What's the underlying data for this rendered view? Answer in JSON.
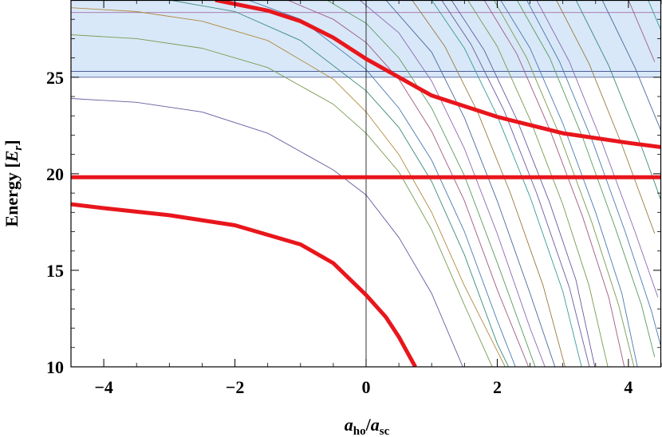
{
  "chart_data": {
    "type": "line",
    "title": "",
    "xlabel": {
      "a": "a",
      "a_sub": "ho",
      "slash": "/",
      "b": "a",
      "b_sub": "sc"
    },
    "ylabel": {
      "text": "Energy [",
      "var": "E",
      "var_sub": "r",
      "close": "]"
    },
    "xlim": [
      -4.5,
      4.5
    ],
    "ylim": [
      10,
      29
    ],
    "x_ticks": [
      -4,
      -2,
      0,
      2,
      4
    ],
    "x_tick_labels": [
      "−4",
      "−2",
      "0",
      "2",
      "4"
    ],
    "y_ticks": [
      10,
      15,
      20,
      25
    ],
    "y_tick_labels": [
      "10",
      "15",
      "20",
      "25"
    ],
    "band": {
      "y": [
        25.0,
        29.0
      ],
      "color": "#d8e8f8",
      "edge_color": "#9ab8d0"
    },
    "threshold_lines": [
      {
        "y": 25.0,
        "color": "#3a4a8a"
      },
      {
        "y": 25.3,
        "color": "#3a4a8a"
      },
      {
        "y": 28.35,
        "color": "#9a5a9a"
      }
    ],
    "zero_line_x": 0,
    "highlight_color": "#e8161c",
    "highlight_series": [
      {
        "points": [
          [
            -4.5,
            18.42
          ],
          [
            -4.0,
            18.22
          ],
          [
            -3.0,
            17.85
          ],
          [
            -2.0,
            17.33
          ],
          [
            -1.0,
            16.34
          ],
          [
            -0.5,
            15.37
          ],
          [
            0.0,
            13.72
          ],
          [
            0.3,
            12.58
          ],
          [
            0.5,
            11.55
          ],
          [
            0.75,
            10.0
          ]
        ]
      },
      {
        "points": [
          [
            -4.5,
            19.82
          ],
          [
            4.5,
            19.82
          ]
        ]
      },
      {
        "points": [
          [
            -2.3,
            29.0
          ],
          [
            -1.5,
            28.45
          ],
          [
            -1.0,
            27.9
          ],
          [
            -0.5,
            27.05
          ],
          [
            0.0,
            25.95
          ],
          [
            0.5,
            25.0
          ],
          [
            1.0,
            24.05
          ],
          [
            2.0,
            22.95
          ],
          [
            3.0,
            22.1
          ],
          [
            4.0,
            21.6
          ],
          [
            4.5,
            21.38
          ]
        ]
      }
    ],
    "thin_series": [
      {
        "color": "#6a5aa0",
        "points": [
          [
            -4.5,
            23.9
          ],
          [
            -3.5,
            23.7
          ],
          [
            -2.5,
            23.2
          ],
          [
            -1.5,
            22.1
          ],
          [
            -0.5,
            20.2
          ],
          [
            0.0,
            18.9
          ],
          [
            0.5,
            16.7
          ],
          [
            1.0,
            13.8
          ],
          [
            1.5,
            9.8
          ]
        ]
      },
      {
        "color": "#7a9a50",
        "points": [
          [
            -4.5,
            27.2
          ],
          [
            -3.5,
            27.0
          ],
          [
            -2.5,
            26.5
          ],
          [
            -1.5,
            25.5
          ],
          [
            -0.5,
            23.6
          ],
          [
            0.0,
            22.1
          ],
          [
            0.5,
            20.1
          ],
          [
            1.0,
            17.1
          ],
          [
            1.5,
            13.2
          ],
          [
            1.95,
            9.8
          ]
        ]
      },
      {
        "color": "#b08a40",
        "points": [
          [
            -4.5,
            28.6
          ],
          [
            -3.5,
            28.4
          ],
          [
            -2.5,
            27.9
          ],
          [
            -1.5,
            26.9
          ],
          [
            -0.5,
            24.9
          ],
          [
            0.0,
            23.2
          ],
          [
            0.5,
            21.0
          ],
          [
            1.0,
            18.0
          ],
          [
            1.5,
            14.2
          ],
          [
            2.15,
            9.8
          ]
        ]
      },
      {
        "color": "#3a8a7a",
        "points": [
          [
            -3.0,
            29.0
          ],
          [
            -2.0,
            28.4
          ],
          [
            -1.0,
            26.9
          ],
          [
            0.0,
            24.3
          ],
          [
            0.5,
            22.4
          ],
          [
            1.0,
            19.6
          ],
          [
            1.5,
            15.8
          ],
          [
            2.0,
            11.2
          ],
          [
            2.2,
            9.8
          ]
        ]
      },
      {
        "color": "#4a7ab0",
        "points": [
          [
            -1.8,
            29.0
          ],
          [
            -1.0,
            28.0
          ],
          [
            0.0,
            25.4
          ],
          [
            0.5,
            23.4
          ],
          [
            1.0,
            20.7
          ],
          [
            1.5,
            17.0
          ],
          [
            2.0,
            12.4
          ],
          [
            2.3,
            9.8
          ]
        ]
      },
      {
        "color": "#a05a80",
        "points": [
          [
            -1.2,
            29.0
          ],
          [
            -0.5,
            28.0
          ],
          [
            0.0,
            26.8
          ],
          [
            0.5,
            24.9
          ],
          [
            1.0,
            22.2
          ],
          [
            1.5,
            18.6
          ],
          [
            2.0,
            14.0
          ],
          [
            2.5,
            9.8
          ]
        ]
      },
      {
        "color": "#5a9a60",
        "points": [
          [
            -0.6,
            29.0
          ],
          [
            0.0,
            27.8
          ],
          [
            0.5,
            26.0
          ],
          [
            1.0,
            23.4
          ],
          [
            1.5,
            19.9
          ],
          [
            2.0,
            15.4
          ],
          [
            2.6,
            9.8
          ]
        ]
      },
      {
        "color": "#8a6ab0",
        "points": [
          [
            -0.1,
            29.0
          ],
          [
            0.5,
            27.3
          ],
          [
            1.0,
            24.8
          ],
          [
            1.5,
            21.3
          ],
          [
            2.0,
            16.9
          ],
          [
            2.5,
            12.0
          ],
          [
            2.75,
            9.8
          ]
        ]
      },
      {
        "color": "#4a6a9a",
        "points": [
          [
            0.3,
            29.0
          ],
          [
            1.0,
            26.3
          ],
          [
            1.5,
            22.9
          ],
          [
            2.0,
            18.6
          ],
          [
            2.5,
            13.8
          ],
          [
            2.9,
            9.8
          ]
        ]
      },
      {
        "color": "#9a7a40",
        "points": [
          [
            0.7,
            29.0
          ],
          [
            1.2,
            26.6
          ],
          [
            1.7,
            23.2
          ],
          [
            2.2,
            19.0
          ],
          [
            2.7,
            14.2
          ],
          [
            3.05,
            9.8
          ]
        ]
      },
      {
        "color": "#3a9a9a",
        "points": [
          [
            1.0,
            29.0
          ],
          [
            1.5,
            26.5
          ],
          [
            2.0,
            23.0
          ],
          [
            2.5,
            18.8
          ],
          [
            3.0,
            13.9
          ],
          [
            3.3,
            9.8
          ]
        ]
      },
      {
        "color": "#6a5aa0",
        "points": [
          [
            1.3,
            29.0
          ],
          [
            1.8,
            26.4
          ],
          [
            2.3,
            22.8
          ],
          [
            2.8,
            18.5
          ],
          [
            3.2,
            14.5
          ],
          [
            3.5,
            9.8
          ]
        ]
      },
      {
        "color": "#7a9a50",
        "points": [
          [
            1.55,
            29.0
          ],
          [
            2.0,
            26.6
          ],
          [
            2.5,
            22.8
          ],
          [
            3.0,
            18.4
          ],
          [
            3.4,
            14.2
          ],
          [
            3.7,
            9.8
          ]
        ]
      },
      {
        "color": "#a05a80",
        "points": [
          [
            1.8,
            29.0
          ],
          [
            2.3,
            26.2
          ],
          [
            2.8,
            22.3
          ],
          [
            3.3,
            17.8
          ],
          [
            3.7,
            13.6
          ],
          [
            3.95,
            9.8
          ]
        ]
      },
      {
        "color": "#4a7ab0",
        "points": [
          [
            2.05,
            29.0
          ],
          [
            2.5,
            26.5
          ],
          [
            3.0,
            22.6
          ],
          [
            3.5,
            18.0
          ],
          [
            3.9,
            13.8
          ],
          [
            4.15,
            9.8
          ]
        ]
      },
      {
        "color": "#5a9a60",
        "points": [
          [
            2.3,
            29.0
          ],
          [
            2.8,
            26.0
          ],
          [
            3.3,
            21.9
          ],
          [
            3.8,
            17.2
          ],
          [
            4.2,
            13.2
          ],
          [
            4.4,
            10.5
          ]
        ]
      },
      {
        "color": "#8a6ab0",
        "points": [
          [
            2.6,
            29.0
          ],
          [
            3.1,
            25.8
          ],
          [
            3.6,
            21.6
          ],
          [
            4.1,
            17.0
          ],
          [
            4.45,
            13.6
          ]
        ]
      },
      {
        "color": "#9a7a40",
        "points": [
          [
            2.9,
            29.0
          ],
          [
            3.4,
            25.7
          ],
          [
            3.9,
            21.5
          ],
          [
            4.4,
            16.9
          ]
        ]
      },
      {
        "color": "#3a8a7a",
        "points": [
          [
            3.2,
            29.0
          ],
          [
            3.7,
            25.6
          ],
          [
            4.2,
            21.4
          ],
          [
            4.5,
            18.6
          ]
        ]
      },
      {
        "color": "#4a6a9a",
        "points": [
          [
            3.6,
            29.0
          ],
          [
            4.1,
            25.5
          ],
          [
            4.5,
            22.2
          ]
        ]
      },
      {
        "color": "#a05a80",
        "points": [
          [
            4.0,
            29.0
          ],
          [
            4.4,
            25.8
          ]
        ]
      },
      {
        "color": "#3a9a9a",
        "points": [
          [
            4.3,
            29.0
          ],
          [
            4.5,
            27.4
          ]
        ]
      },
      {
        "color": "#6a5aa0",
        "points": [
          [
            1.15,
            29.0
          ],
          [
            1.6,
            26.7
          ],
          [
            2.1,
            23.3
          ],
          [
            2.6,
            19.0
          ],
          [
            3.1,
            14.1
          ],
          [
            3.42,
            9.8
          ]
        ]
      },
      {
        "color": "#7a9a50",
        "points": [
          [
            1.95,
            29.0
          ],
          [
            2.45,
            26.0
          ],
          [
            2.95,
            22.0
          ],
          [
            3.45,
            17.4
          ],
          [
            3.85,
            13.2
          ],
          [
            4.1,
            9.8
          ]
        ]
      },
      {
        "color": "#4a7ab0",
        "points": [
          [
            2.45,
            29.0
          ],
          [
            2.95,
            25.8
          ],
          [
            3.45,
            21.7
          ],
          [
            3.95,
            17.0
          ],
          [
            4.35,
            12.9
          ],
          [
            4.5,
            11.0
          ]
        ]
      }
    ]
  }
}
